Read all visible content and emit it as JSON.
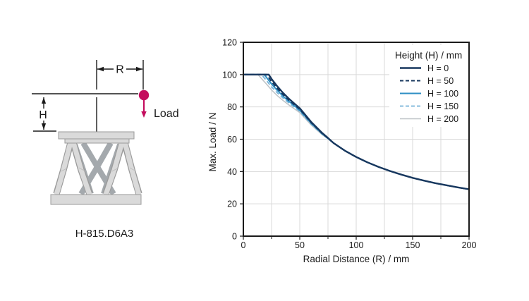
{
  "diagram": {
    "product_label": "H-815.D6A3",
    "dim_r_label": "R",
    "dim_h_label": "H",
    "load_label": "Load",
    "load_color": "#c40d5e",
    "line_color": "#1a1a1a",
    "platform_fill": "#dadada",
    "platform_stroke": "#9b9b9b",
    "front_leg_fill": "#dadada",
    "front_leg_stroke": "#9b9b9b",
    "back_leg_color": "#a4a9ad"
  },
  "chart_data": {
    "type": "line",
    "title": "",
    "xlabel": "Radial Distance (R) / mm",
    "ylabel": "Max. Load / N",
    "xlim": [
      0,
      200
    ],
    "ylim": [
      0,
      120
    ],
    "xticks": [
      0,
      50,
      100,
      150,
      200
    ],
    "yticks": [
      0,
      20,
      40,
      60,
      80,
      100,
      120
    ],
    "x_minor_ticks": [
      25,
      75,
      125,
      175
    ],
    "x_grid_step": 25,
    "y_grid_step": 20,
    "grid": true,
    "grid_color": "#d9d9d9",
    "axis_color": "#1a1a1a",
    "legend_title": "Height (H) / mm",
    "legend_position": "top-right",
    "series": [
      {
        "name": "H = 0",
        "color": "#17375e",
        "dash": "solid",
        "width": 2.4,
        "x": [
          0,
          22.5,
          25,
          30,
          35,
          40,
          45,
          50,
          60,
          70,
          75,
          80,
          90,
          100,
          110,
          120,
          130,
          140,
          150,
          160,
          170,
          180,
          190,
          200
        ],
        "y": [
          100,
          100,
          97.3,
          92.8,
          88.8,
          85.3,
          82.2,
          79.2,
          70.8,
          63.8,
          60.8,
          57.6,
          52.9,
          49,
          45.7,
          42.8,
          40.3,
          38.1,
          36.1,
          34.4,
          32.8,
          31.5,
          30.2,
          29
        ]
      },
      {
        "name": "H = 50",
        "color": "#17375e",
        "dash": "dashed",
        "width": 2,
        "x": [
          0,
          20.5,
          25,
          30,
          35,
          40,
          45,
          50,
          60,
          70,
          75,
          80,
          90,
          100,
          110,
          120,
          130,
          140,
          150,
          160,
          170,
          180,
          190,
          200
        ],
        "y": [
          100,
          100,
          95.7,
          91.5,
          87.8,
          84.5,
          81.5,
          78.6,
          70.4,
          63.5,
          60.6,
          57.6,
          52.9,
          49,
          45.7,
          42.8,
          40.3,
          38.1,
          36.1,
          34.4,
          32.8,
          31.5,
          30.2,
          29
        ]
      },
      {
        "name": "H = 100",
        "color": "#2e8fc4",
        "dash": "solid",
        "width": 2,
        "x": [
          0,
          18.5,
          25,
          30,
          35,
          40,
          45,
          50,
          60,
          70,
          75,
          80,
          90,
          100,
          110,
          120,
          130,
          140,
          150,
          160,
          170,
          180,
          190,
          200
        ],
        "y": [
          100,
          100,
          94.2,
          90.3,
          86.8,
          83.7,
          80.9,
          78,
          70,
          63.3,
          60.5,
          57.6,
          52.9,
          49,
          45.7,
          42.8,
          40.3,
          38.1,
          36.1,
          34.4,
          32.8,
          31.5,
          30.2,
          29
        ]
      },
      {
        "name": "H = 150",
        "color": "#74b2d8",
        "dash": "dashed",
        "width": 1.8,
        "x": [
          0,
          16,
          20,
          25,
          30,
          35,
          40,
          45,
          50,
          60,
          70,
          75,
          80,
          90,
          100,
          110,
          120,
          130,
          140,
          150,
          160,
          170,
          180,
          190,
          200
        ],
        "y": [
          100,
          100,
          96.8,
          92.4,
          88.8,
          85.6,
          82.7,
          80,
          77.3,
          69.5,
          63,
          60.4,
          57.6,
          52.9,
          49,
          45.7,
          42.8,
          40.3,
          38.1,
          36.1,
          34.4,
          32.8,
          31.5,
          30.2,
          29
        ]
      },
      {
        "name": "H = 200",
        "color": "#bdc2c6",
        "dash": "solid",
        "width": 1.5,
        "x": [
          0,
          13,
          15,
          20,
          25,
          30,
          35,
          40,
          45,
          50,
          60,
          70,
          75,
          80,
          90,
          100,
          110,
          120,
          130,
          140,
          150,
          160,
          170,
          180,
          190,
          200
        ],
        "y": [
          100,
          100,
          98.4,
          94.5,
          90.5,
          87,
          84.1,
          81.4,
          78.9,
          76.5,
          68.9,
          62.7,
          60.3,
          57.6,
          52.9,
          49,
          45.7,
          42.8,
          40.3,
          38.1,
          36.1,
          34.4,
          32.8,
          31.5,
          30.2,
          29
        ]
      }
    ]
  }
}
